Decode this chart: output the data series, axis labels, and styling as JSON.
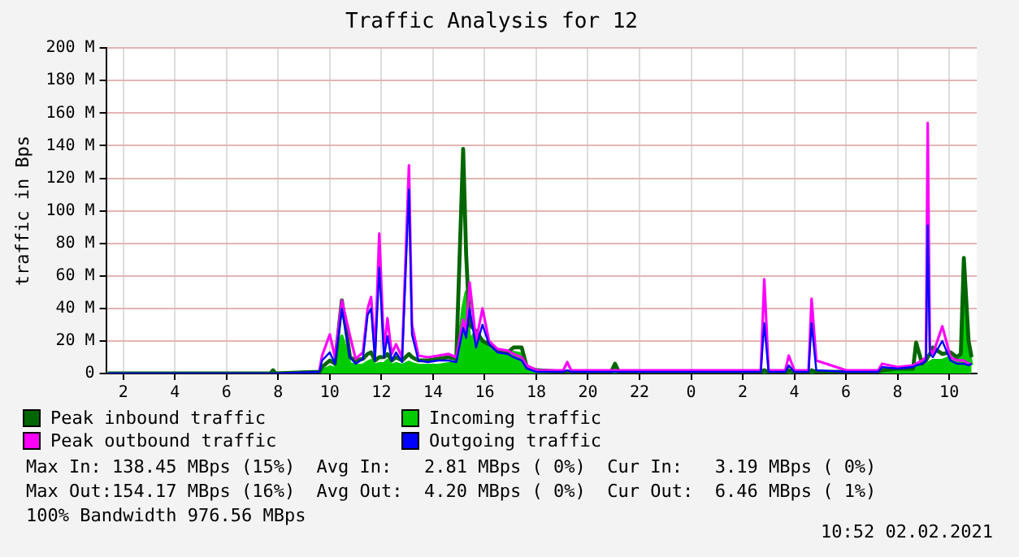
{
  "chart_data": {
    "type": "line",
    "title": "Traffic Analysis for 12",
    "ylabel": "traffic in Bps",
    "x": [
      "2021-02-01T01:24",
      "2021-02-01T07:42",
      "2021-02-01T07:48",
      "2021-02-01T07:54",
      "2021-02-01T09:36",
      "2021-02-01T09:42",
      "2021-02-01T10:00",
      "2021-02-01T10:12",
      "2021-02-01T10:28",
      "2021-02-01T10:47",
      "2021-02-01T11:00",
      "2021-02-01T11:17",
      "2021-02-01T11:28",
      "2021-02-01T11:36",
      "2021-02-01T11:45",
      "2021-02-01T11:55",
      "2021-02-01T12:06",
      "2021-02-01T12:14",
      "2021-02-01T12:24",
      "2021-02-01T12:34",
      "2021-02-01T12:48",
      "2021-02-01T13:04",
      "2021-02-01T13:11",
      "2021-02-01T13:26",
      "2021-02-01T13:48",
      "2021-02-01T14:12",
      "2021-02-01T14:36",
      "2021-02-01T14:54",
      "2021-02-01T15:10",
      "2021-02-01T15:17",
      "2021-02-01T15:25",
      "2021-02-01T15:40",
      "2021-02-01T15:55",
      "2021-02-01T16:10",
      "2021-02-01T16:30",
      "2021-02-01T16:54",
      "2021-02-01T17:07",
      "2021-02-01T17:26",
      "2021-02-01T17:38",
      "2021-02-01T18:00",
      "2021-02-01T19:03",
      "2021-02-01T19:12",
      "2021-02-01T19:21",
      "2021-02-01T20:54",
      "2021-02-01T21:03",
      "2021-02-01T21:12",
      "2021-02-02T00:00",
      "2021-02-02T02:42",
      "2021-02-02T02:50",
      "2021-02-02T03:00",
      "2021-02-02T03:39",
      "2021-02-02T03:47",
      "2021-02-02T04:00",
      "2021-02-02T04:33",
      "2021-02-02T04:40",
      "2021-02-02T04:51",
      "2021-02-02T06:00",
      "2021-02-02T07:15",
      "2021-02-02T07:24",
      "2021-02-02T08:00",
      "2021-02-02T08:36",
      "2021-02-02T08:43",
      "2021-02-02T08:57",
      "2021-02-02T09:06",
      "2021-02-02T09:10",
      "2021-02-02T09:15",
      "2021-02-02T09:22",
      "2021-02-02T09:44",
      "2021-02-02T10:03",
      "2021-02-02T10:18",
      "2021-02-02T10:27",
      "2021-02-02T10:34",
      "2021-02-02T10:45",
      "2021-02-02T10:52"
    ],
    "series": [
      {
        "name": "Peak inbound traffic",
        "color": "#006600",
        "values": [
          0,
          0,
          2,
          0,
          1,
          4,
          8,
          6,
          45,
          10,
          8,
          9,
          12,
          13,
          8,
          10,
          10,
          12,
          8,
          10,
          8,
          12,
          10,
          8,
          8,
          9,
          10,
          9,
          138,
          73,
          30,
          26,
          20,
          18,
          14,
          13,
          16,
          16,
          4,
          2,
          1,
          1,
          1,
          1,
          6,
          1,
          1,
          1,
          2,
          1,
          1,
          2,
          1,
          1,
          2,
          1,
          1,
          1,
          2,
          3,
          3,
          19,
          6,
          8,
          10,
          12,
          16,
          12,
          13,
          10,
          12,
          71,
          20,
          10
        ]
      },
      {
        "name": "Incoming traffic",
        "type": "area",
        "color": "#00cc00",
        "values": [
          0,
          0,
          1,
          0,
          1,
          2,
          4,
          3,
          23,
          6,
          5,
          5,
          7,
          8,
          5,
          6,
          6,
          8,
          5,
          6,
          5,
          7,
          6,
          5,
          5,
          5,
          6,
          6,
          41,
          50,
          20,
          26,
          20,
          15,
          12,
          11,
          13,
          12,
          3,
          1,
          1,
          1,
          1,
          1,
          2,
          1,
          1,
          1,
          1,
          1,
          1,
          1,
          1,
          1,
          1,
          1,
          1,
          1,
          1,
          2,
          2,
          5,
          4,
          5,
          6,
          7,
          8,
          8,
          10,
          8,
          9,
          66,
          15,
          5
        ]
      },
      {
        "name": "Peak outbound traffic",
        "color": "#ff00ff",
        "values": [
          null,
          null,
          null,
          null,
          2,
          11,
          24,
          10,
          45,
          23,
          9,
          13,
          40,
          47,
          12,
          86,
          14,
          34,
          12,
          18,
          10,
          128,
          30,
          11,
          10,
          11,
          12,
          10,
          33,
          26,
          56,
          20,
          40,
          20,
          15,
          14,
          12,
          10,
          5,
          2,
          2,
          7,
          2,
          2,
          2,
          2,
          2,
          2,
          58,
          2,
          2,
          11,
          2,
          2,
          46,
          8,
          2,
          2,
          6,
          4,
          5,
          6,
          8,
          10,
          154,
          15,
          12,
          29,
          10,
          8,
          8,
          8,
          6,
          6
        ]
      },
      {
        "name": "Outgoing traffic",
        "color": "#0000ff",
        "values": [
          0,
          0,
          0,
          0,
          1,
          8,
          13,
          6,
          40,
          10,
          6,
          9,
          36,
          40,
          8,
          65,
          10,
          23,
          8,
          13,
          7,
          113,
          24,
          8,
          7,
          8,
          8,
          7,
          28,
          22,
          40,
          16,
          30,
          18,
          13,
          12,
          10,
          8,
          3,
          1,
          1,
          2,
          1,
          1,
          1,
          1,
          1,
          1,
          31,
          1,
          1,
          5,
          1,
          1,
          31,
          2,
          1,
          1,
          4,
          3,
          4,
          5,
          6,
          8,
          91,
          12,
          10,
          20,
          8,
          6,
          6,
          6,
          5,
          6
        ]
      }
    ],
    "xlim": [
      "2021-02-01T01:20",
      "2021-02-02T11:04"
    ],
    "xticks": [
      {
        "value": "2021-02-01T02:00",
        "label": "2"
      },
      {
        "value": "2021-02-01T04:00",
        "label": "4"
      },
      {
        "value": "2021-02-01T06:00",
        "label": "6"
      },
      {
        "value": "2021-02-01T08:00",
        "label": "8"
      },
      {
        "value": "2021-02-01T10:00",
        "label": "10"
      },
      {
        "value": "2021-02-01T12:00",
        "label": "12"
      },
      {
        "value": "2021-02-01T14:00",
        "label": "14"
      },
      {
        "value": "2021-02-01T16:00",
        "label": "16"
      },
      {
        "value": "2021-02-01T18:00",
        "label": "18"
      },
      {
        "value": "2021-02-01T20:00",
        "label": "20"
      },
      {
        "value": "2021-02-01T22:00",
        "label": "22"
      },
      {
        "value": "2021-02-02T00:00",
        "label": "0"
      },
      {
        "value": "2021-02-02T02:00",
        "label": "2"
      },
      {
        "value": "2021-02-02T04:00",
        "label": "4"
      },
      {
        "value": "2021-02-02T06:00",
        "label": "6"
      },
      {
        "value": "2021-02-02T08:00",
        "label": "8"
      },
      {
        "value": "2021-02-02T10:00",
        "label": "10"
      }
    ],
    "ylim": [
      0,
      200
    ],
    "yticks": [
      0,
      {
        "value": 20,
        "label": "20 M"
      },
      {
        "value": 40,
        "label": "40 M"
      },
      {
        "value": 60,
        "label": "60 M"
      },
      {
        "value": 80,
        "label": "80 M"
      },
      {
        "value": 100,
        "label": "100 M"
      },
      {
        "value": 120,
        "label": "120 M"
      },
      {
        "value": 140,
        "label": "140 M"
      },
      {
        "value": 160,
        "label": "160 M"
      },
      {
        "value": 180,
        "label": "180 M"
      },
      {
        "value": 200,
        "label": "200 M"
      }
    ],
    "grid": true,
    "legend": "bottom",
    "marker": "none",
    "line_style": "solid",
    "annotations": [
      "Max In: 138.45 MBps (15%)  Avg In:   2.81 MBps ( 0%)  Cur In:   3.19 MBps ( 0%)",
      "Max Out:154.17 MBps (16%)  Avg Out:  4.20 MBps ( 0%)  Cur Out:  6.46 MBps ( 1%)",
      "100% Bandwidth 976.56 MBps",
      "10:52 02.02.2021"
    ]
  }
}
